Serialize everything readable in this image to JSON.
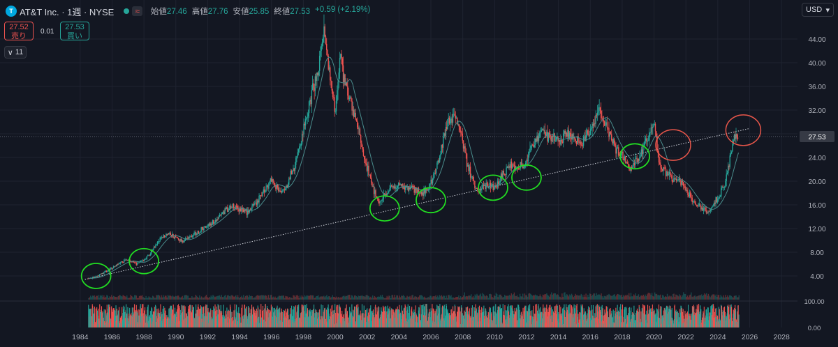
{
  "header": {
    "logo_text": "T",
    "symbol": "AT&T Inc. · 1週 · NYSE",
    "status_wave": "≈",
    "ohlc": [
      {
        "k": "始値",
        "v": "27.46"
      },
      {
        "k": "高値",
        "v": "27.76"
      },
      {
        "k": "安値",
        "v": "25.85"
      },
      {
        "k": "終値",
        "v": "27.53"
      },
      {
        "k": "",
        "v": "+0.59 (+2.19%)"
      }
    ]
  },
  "trade": {
    "sell_price": "27.52",
    "sell_label": "売り",
    "spread": "0.01",
    "buy_price": "27.53",
    "buy_label": "買い"
  },
  "indicator_toggle": {
    "count": "11",
    "chevron": "∨"
  },
  "currency": {
    "label": "USD",
    "chevron": "▾"
  },
  "colors": {
    "up": "#26a69a",
    "down": "#ef5350",
    "bg": "#131722",
    "grid": "#1f2330",
    "ma": "#4a8c8c",
    "green_circle": "#22dd22",
    "red_circle": "#e8564a",
    "last_price_bg": "#363a45"
  },
  "chart_data": {
    "type": "line",
    "title": "",
    "xlabel": "",
    "ylabel": "",
    "x": [
      1984.5,
      1985,
      1985.5,
      1986,
      1986.5,
      1987,
      1987.5,
      1988,
      1988.5,
      1989,
      1989.5,
      1990,
      1990.5,
      1991,
      1991.5,
      1992,
      1992.5,
      1993,
      1993.5,
      1994,
      1994.5,
      1995,
      1995.5,
      1996,
      1996.5,
      1997,
      1997.5,
      1998,
      1998.5,
      1999,
      1999.3,
      1999.6,
      2000,
      2000.3,
      2000.6,
      2001,
      2001.3,
      2001.6,
      2002,
      2002.4,
      2002.8,
      2003,
      2003.5,
      2004,
      2004.5,
      2005,
      2005.5,
      2006,
      2006.5,
      2007,
      2007.5,
      2007.9,
      2008.3,
      2008.7,
      2009,
      2009.5,
      2010,
      2010.5,
      2011,
      2011.5,
      2012,
      2012.5,
      2013,
      2013.5,
      2014,
      2014.5,
      2015,
      2015.5,
      2016,
      2016.5,
      2016.8,
      2017,
      2017.5,
      2018,
      2018.5,
      2019,
      2019.5,
      2020,
      2020.3,
      2020.6,
      2021,
      2021.5,
      2022,
      2022.5,
      2023,
      2023.5,
      2024,
      2024.5,
      2025,
      2025.3
    ],
    "y": [
      3.6,
      3.8,
      4.6,
      5.4,
      6.2,
      6.8,
      6.0,
      6.6,
      8.2,
      10.2,
      11.2,
      10.4,
      9.8,
      10.8,
      11.6,
      12.6,
      13.4,
      14.8,
      15.8,
      15.2,
      14.8,
      16.0,
      18.2,
      20.4,
      18.2,
      19.6,
      22.8,
      28.6,
      34.2,
      40.2,
      44.6,
      38.8,
      31.2,
      41.8,
      36.6,
      33.2,
      30.4,
      26.4,
      22.2,
      18.6,
      16.4,
      17.2,
      18.8,
      19.4,
      18.8,
      18.6,
      18.2,
      19.6,
      23.8,
      29.4,
      31.4,
      27.8,
      22.8,
      19.4,
      18.6,
      19.6,
      18.8,
      21.2,
      22.6,
      22.4,
      23.2,
      26.8,
      28.6,
      27.2,
      26.8,
      27.8,
      27.2,
      26.6,
      28.4,
      31.8,
      30.8,
      29.8,
      25.8,
      24.4,
      22.2,
      23.8,
      26.8,
      29.6,
      23.6,
      21.8,
      20.6,
      20.2,
      18.8,
      16.4,
      15.4,
      14.8,
      17.2,
      19.8,
      27.2,
      27.53
    ],
    "ylim": [
      0,
      48
    ],
    "xlim": [
      1983.0,
      2029.0
    ],
    "y_ticks": [
      "4.00",
      "8.00",
      "12.00",
      "16.00",
      "20.00",
      "24.00",
      "28.00",
      "32.00",
      "36.00",
      "40.00",
      "44.00"
    ],
    "y_tick_values": [
      4,
      8,
      12,
      16,
      20,
      24,
      28,
      32,
      36,
      40,
      44
    ],
    "x_ticks": [
      "1984",
      "1986",
      "1988",
      "1990",
      "1992",
      "1994",
      "1996",
      "1998",
      "2000",
      "2002",
      "2004",
      "2006",
      "2008",
      "2010",
      "2012",
      "2014",
      "2016",
      "2018",
      "2020",
      "2022",
      "2024",
      "2026",
      "2028"
    ],
    "x_tick_values": [
      1984,
      1986,
      1988,
      1990,
      1992,
      1994,
      1996,
      1998,
      2000,
      2002,
      2004,
      2006,
      2008,
      2010,
      2012,
      2014,
      2016,
      2018,
      2020,
      2022,
      2024,
      2026,
      2028
    ],
    "last_price": "27.53",
    "last_price_value": 27.53,
    "trendline": {
      "from": [
        1984.3,
        3.4
      ],
      "to": [
        2026.0,
        28.9
      ]
    },
    "annotations": {
      "green_circles": [
        [
          1985.0,
          4.0
        ],
        [
          1988.0,
          6.5
        ],
        [
          2003.1,
          15.4
        ],
        [
          2006.0,
          16.8
        ],
        [
          2009.9,
          18.9
        ],
        [
          2012.0,
          20.6
        ],
        [
          2018.8,
          24.2
        ]
      ],
      "red_circles": [
        [
          2021.2,
          26.1
        ],
        [
          2025.6,
          28.6
        ]
      ]
    },
    "oscillator": {
      "ticks": [
        "100.00",
        "0.00"
      ],
      "tick_values": [
        100,
        0
      ]
    }
  }
}
